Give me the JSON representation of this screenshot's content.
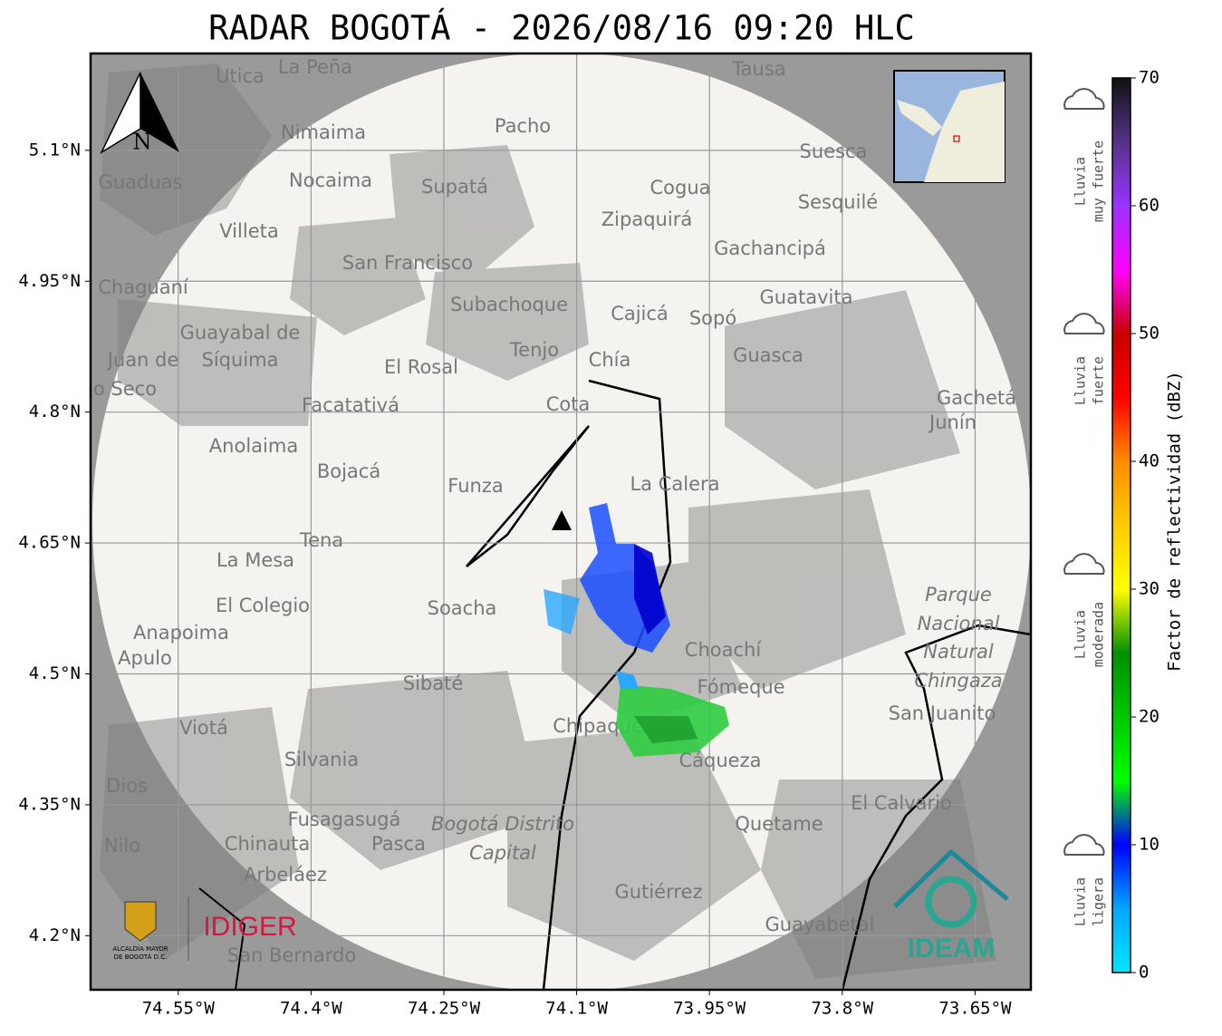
{
  "title": "RADAR BOGOTÁ - 2026/08/16 09:20 HLC",
  "map": {
    "xlim": [
      -74.649,
      -73.587
    ],
    "ylim": [
      4.138,
      5.211
    ],
    "xticks": [
      {
        "value": -74.55,
        "label": "74.55°W"
      },
      {
        "value": -74.4,
        "label": "74.4°W"
      },
      {
        "value": -74.25,
        "label": "74.25°W"
      },
      {
        "value": -74.1,
        "label": "74.1°W"
      },
      {
        "value": -73.95,
        "label": "73.95°W"
      },
      {
        "value": -73.8,
        "label": "73.8°W"
      },
      {
        "value": -73.65,
        "label": "73.65°W"
      }
    ],
    "yticks": [
      {
        "value": 5.1,
        "label": "5.1°N"
      },
      {
        "value": 4.95,
        "label": "4.95°N"
      },
      {
        "value": 4.8,
        "label": "4.8°N"
      },
      {
        "value": 4.65,
        "label": "4.65°N"
      },
      {
        "value": 4.5,
        "label": "4.5°N"
      },
      {
        "value": 4.35,
        "label": "4.35°N"
      },
      {
        "value": 4.2,
        "label": "4.2°N"
      }
    ],
    "grid": true,
    "north": "N",
    "places": [
      "La Peña",
      "Utica",
      "Tausa",
      "Pacho",
      "Nimaima",
      "Guaduas",
      "Nocaima",
      "Supatá",
      "Suesca",
      "Cogua",
      "Sesquilé",
      "Zipaquirá",
      "Villeta",
      "Gachancipá",
      "San Francisco",
      "Chaguaní",
      "Guatavita",
      "Subachoque",
      "Cajicá",
      "Sopó",
      "Guayabal de",
      "Síquima",
      "Tenjo",
      "Guasca",
      "El Rosal",
      "Chía",
      "Facatativá",
      "Cota",
      "Gachetá",
      "Junín",
      "Anolaima",
      "Bojacá",
      "Funza",
      "La Calera",
      "Tena",
      "La Mesa",
      "Soacha",
      "El Colegio",
      "Parque",
      "Nacional",
      "Natural",
      "Chingaza",
      "Anapoima",
      "Apulo",
      "Choachí",
      "Sibaté",
      "Fómeque",
      "San Juanito",
      "Viotá",
      "Chipaque",
      "Silvania",
      "Cáqueza",
      "Dios",
      "El Calvario",
      "Fusagasugá",
      "Quetame",
      "Bogotá Distrito",
      "Capital",
      "Nilo",
      "Chinauta",
      "Pasca",
      "Arbeláez",
      "Gutiérrez",
      "Guayabetal",
      "San Bernardo",
      "Juan de",
      "o Seco"
    ]
  },
  "colorbar": {
    "label": "Factor de reflectividad (dBZ)",
    "lim": [
      0,
      70
    ],
    "ticks": [
      0,
      10,
      20,
      30,
      40,
      50,
      60,
      70
    ],
    "colors": [
      "#00e5ff",
      "#00a8ff",
      "#0000ff",
      "#00ff00",
      "#00c800",
      "#009000",
      "#ffff00",
      "#ffcc00",
      "#ff8c00",
      "#ff0000",
      "#c80000",
      "#ff00ff",
      "#9933ff",
      "#553388",
      "#111111"
    ],
    "levels": [
      [
        "Lluvia",
        "muy fuerte"
      ],
      [
        "Lluvia",
        "fuerte"
      ],
      [
        "Lluvia",
        "moderada"
      ],
      [
        "Lluvia",
        "ligera"
      ]
    ]
  },
  "logos": {
    "alcaldia": [
      "ALCALDÍA MAYOR",
      "DE BOGOTÁ D.C."
    ],
    "idiger": "IDIGER",
    "ideam": "IDEAM"
  }
}
